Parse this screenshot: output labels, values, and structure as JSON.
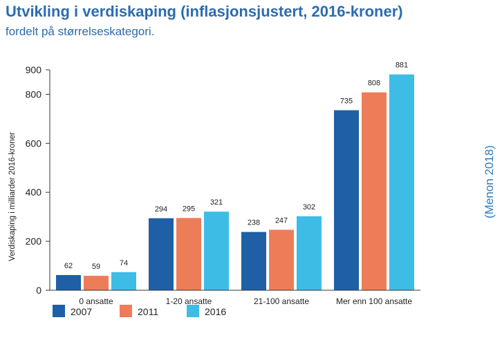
{
  "header": {
    "title": "Utvikling i verdiskaping (inflasjonsjustert, 2016-kroner)",
    "subtitle": "fordelt på størrelseskategori.",
    "source": "(Menon 2018)"
  },
  "chart_data": {
    "type": "bar",
    "categories": [
      "0 ansatte",
      "1-20 ansatte",
      "21-100 ansatte",
      "Mer enn 100 ansatte"
    ],
    "series": [
      {
        "name": "2007",
        "values": [
          62,
          294,
          238,
          735
        ],
        "color": "#1f5fa6"
      },
      {
        "name": "2011",
        "values": [
          59,
          295,
          247,
          808
        ],
        "color": "#ed7d59"
      },
      {
        "name": "2016",
        "values": [
          74,
          321,
          302,
          881
        ],
        "color": "#3dbde6"
      }
    ],
    "title": "",
    "xlabel": "",
    "ylabel": "Verdiskaping i milliarder 2016-kroner",
    "ylim": [
      0,
      900
    ],
    "yticks": [
      "0",
      "200",
      "400",
      "600",
      "800",
      "900"
    ],
    "grid": false,
    "legend_position": "bottom-left"
  }
}
